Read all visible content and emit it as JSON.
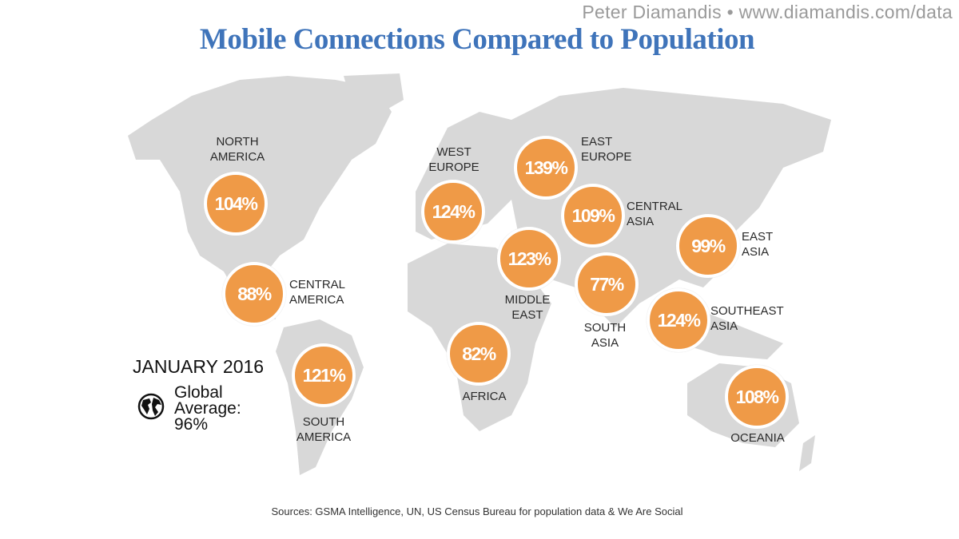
{
  "credit": "Peter Diamandis  •  www.diamandis.com/data",
  "title": "Mobile Connections Compared to Population",
  "date": "JANUARY 2016",
  "global_average": {
    "label1": "Global",
    "label2": "Average:",
    "value": "96%"
  },
  "regions": [
    {
      "name": "North America",
      "value": "104%"
    },
    {
      "name": "Central America",
      "value": "88%"
    },
    {
      "name": "South America",
      "value": "121%"
    },
    {
      "name": "West Europe",
      "value": "124%"
    },
    {
      "name": "East Europe",
      "value": "139%"
    },
    {
      "name": "Central Asia",
      "value": "109%"
    },
    {
      "name": "Middle East",
      "value": "123%"
    },
    {
      "name": "Africa",
      "value": "82%"
    },
    {
      "name": "South Asia",
      "value": "77%"
    },
    {
      "name": "East Asia",
      "value": "99%"
    },
    {
      "name": "Southeast Asia",
      "value": "124%"
    },
    {
      "name": "Oceania",
      "value": "108%"
    }
  ],
  "sources": "Sources: GSMA Intelligence, UN, US Census Bureau for population data & We Are Social",
  "colors": {
    "bubble": "#ef9a47",
    "land": "#d8d8d8",
    "title": "#3f74ba"
  }
}
